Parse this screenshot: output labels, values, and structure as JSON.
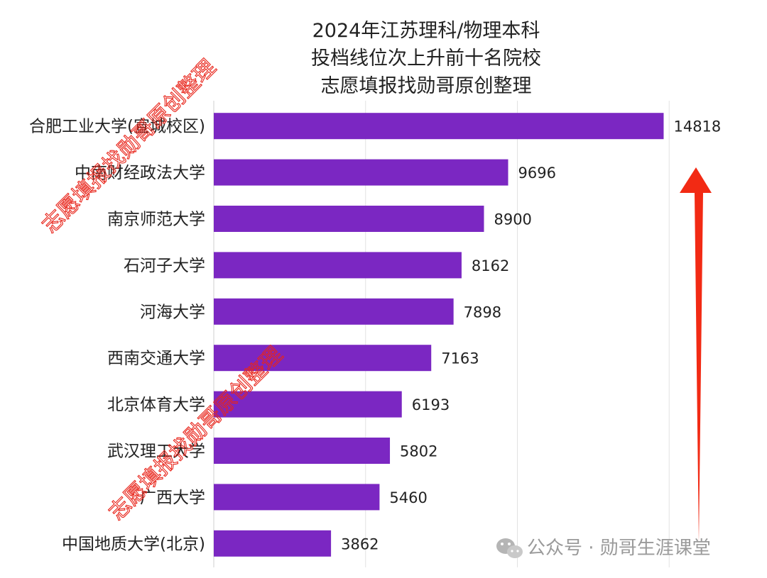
{
  "chart_data": {
    "type": "bar",
    "orientation": "horizontal",
    "title_lines": [
      "2024年江苏理科/物理本科",
      "投档线位次上升前十名院校",
      "志愿填报找勋哥原创整理"
    ],
    "categories": [
      "合肥工业大学(宣城校区)",
      "中南财经政法大学",
      "南京师范大学",
      "石河子大学",
      "河海大学",
      "西南交通大学",
      "北京体育大学",
      "武汉理工大学",
      "广西大学",
      "中国地质大学(北京)"
    ],
    "values": [
      14818,
      9696,
      8900,
      8162,
      7898,
      7163,
      6193,
      5802,
      5460,
      3862
    ],
    "xlim": [
      0,
      20000
    ],
    "grid": true,
    "bar_color": "#7b27c2"
  },
  "watermarks": [
    "志愿填报找勋哥原创整理",
    "志愿填报找勋哥原创整理"
  ],
  "credit": {
    "icon": "wechat-icon",
    "text": "公众号 · 勋哥生涯课堂"
  },
  "arrow_color": "#f22a14"
}
